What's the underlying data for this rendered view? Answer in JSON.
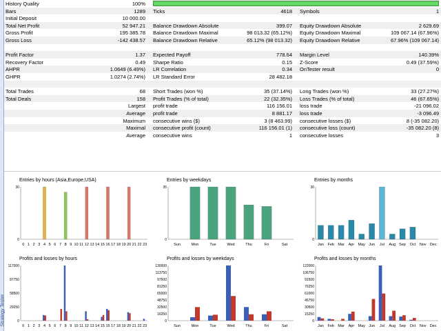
{
  "sidebar": {
    "label": "Strategy Tester"
  },
  "rows": [
    {
      "alt": false,
      "cells": [
        [
          "History Quality",
          "100%"
        ]
      ],
      "bar": 1.0
    },
    {
      "alt": true,
      "cells": [
        [
          "Bars",
          "1289"
        ],
        [
          "Ticks",
          "4618"
        ],
        [
          "Symbols",
          "1"
        ]
      ]
    },
    {
      "alt": false,
      "cells": [
        [
          "Initial Deposit",
          "10 000.00"
        ]
      ]
    },
    {
      "alt": true,
      "cells": [
        [
          "Total Net Profit",
          "52 947.21"
        ],
        [
          "Balance Drawdown Absolute",
          "399.07"
        ],
        [
          "Equity Drawdown Absolute",
          "2 629.69"
        ]
      ]
    },
    {
      "alt": false,
      "cells": [
        [
          "Gross Profit",
          "195 385.78"
        ],
        [
          "Balance Drawdown Maximal",
          "98 013.32 (65.12%)"
        ],
        [
          "Equity Drawdown Maximal",
          "109 067.14 (67.96%)"
        ]
      ]
    },
    {
      "alt": true,
      "cells": [
        [
          "Gross Loss",
          "-142 438.57"
        ],
        [
          "Balance Drawdown Relative",
          "65.12% (98 013.32)"
        ],
        [
          "Equity Drawdown Relative",
          "67.96% (109 067.14)"
        ]
      ]
    },
    {
      "alt": false,
      "cells": []
    },
    {
      "alt": true,
      "cells": [
        [
          "Profit Factor",
          "1.37"
        ],
        [
          "Expected Payoff",
          "778.64"
        ],
        [
          "Margin Level",
          "140.39%"
        ]
      ]
    },
    {
      "alt": false,
      "cells": [
        [
          "Recovery Factor",
          "0.49"
        ],
        [
          "Sharpe Ratio",
          "0.15"
        ],
        [
          "Z-Score",
          "0.49 (37.59%)"
        ]
      ]
    },
    {
      "alt": true,
      "cells": [
        [
          "AHPR",
          "1.0649 (6.49%)"
        ],
        [
          "LR Correlation",
          "0.34"
        ],
        [
          "OnTester result",
          "0"
        ]
      ]
    },
    {
      "alt": false,
      "cells": [
        [
          "GHPR",
          "1.0274 (2.74%)"
        ],
        [
          "LR Standard Error",
          "28 482.18"
        ]
      ]
    },
    {
      "alt": true,
      "cells": []
    },
    {
      "alt": false,
      "cells": [
        [
          "Total Trades",
          "68"
        ],
        [
          "Short Trades (won %)",
          "35 (37.14%)"
        ],
        [
          "Long Trades (won %)",
          "33 (27.27%)"
        ]
      ]
    },
    {
      "alt": true,
      "cells": [
        [
          "Total Deals",
          "158"
        ],
        [
          "Profit Trades (% of total)",
          "22 (32.35%)"
        ],
        [
          "Loss Trades (% of total)",
          "46 (67.65%)"
        ]
      ]
    },
    {
      "alt": false,
      "cells": [
        [
          "",
          "Largest"
        ],
        [
          "profit trade",
          "116 156.01"
        ],
        [
          "loss trade",
          "-21 096.02"
        ]
      ]
    },
    {
      "alt": true,
      "cells": [
        [
          "",
          "Average"
        ],
        [
          "profit trade",
          "8 881.17"
        ],
        [
          "loss trade",
          "-3 096.49"
        ]
      ]
    },
    {
      "alt": false,
      "cells": [
        [
          "",
          "Maximum"
        ],
        [
          "consecutive wins ($)",
          "3 (8 463.99)"
        ],
        [
          "consecutive losses ($)",
          "8 (-35 082.20)"
        ]
      ]
    },
    {
      "alt": true,
      "cells": [
        [
          "",
          "Maximal"
        ],
        [
          "consecutive profit (count)",
          "116 156.01 (1)"
        ],
        [
          "consecutive loss (count)",
          "-35 082.20 (8)"
        ]
      ]
    },
    {
      "alt": false,
      "cells": [
        [
          "",
          "Average"
        ],
        [
          "consecutive wins",
          "1"
        ],
        [
          "consecutive losses",
          "3"
        ]
      ]
    }
  ],
  "charts": [
    {
      "title": "Entries by hours (Asia,Europe,USA)",
      "kind": "bar",
      "categories": [
        "0",
        "1",
        "2",
        "3",
        "4",
        "5",
        "6",
        "7",
        "8",
        "9",
        "10",
        "11",
        "12",
        "13",
        "14",
        "15",
        "16",
        "17",
        "18",
        "19",
        "20",
        "21",
        "22",
        "23"
      ],
      "ymax": 30,
      "ticks": [
        "30",
        "0"
      ],
      "values": [
        0,
        0,
        0,
        0,
        30,
        0,
        0,
        0,
        27,
        0,
        0,
        0,
        30,
        0,
        0,
        0,
        30,
        0,
        0,
        0,
        30,
        0,
        0,
        0
      ],
      "colors": [
        "#8fbf5a",
        "#8fbf5a",
        "#8fbf5a",
        "#8fbf5a",
        "#e8b04a",
        "#e8b04a",
        "#e8b04a",
        "#e8b04a",
        "#8fc85a",
        "#8fc85a",
        "#8fc85a",
        "#8fc85a",
        "#d9786a",
        "#d9786a",
        "#d9786a",
        "#d9786a",
        "#d9786a",
        "#d9786a",
        "#d9786a",
        "#d9786a",
        "#d9786a",
        "#d9786a",
        "#d9786a",
        "#d9786a"
      ]
    },
    {
      "title": "Entries by weekdays",
      "kind": "bar",
      "categories": [
        "Sun",
        "Mon",
        "Tue",
        "Wed",
        "Thu",
        "Fri",
        "Sat"
      ],
      "ymax": 35,
      "ticks": [
        "35",
        "0"
      ],
      "values": [
        0,
        35,
        35,
        35,
        23,
        22,
        0
      ],
      "colors": [
        "#4aa37c",
        "#4aa37c",
        "#4aa37c",
        "#4aa37c",
        "#4aa37c",
        "#4aa37c",
        "#4aa37c"
      ]
    },
    {
      "title": "Entries by months",
      "kind": "bar",
      "categories": [
        "Jan",
        "Feb",
        "Mar",
        "Apr",
        "May",
        "Jun",
        "Jul",
        "Aug",
        "Sep",
        "Oct",
        "Nov",
        "Dec"
      ],
      "ymax": 30,
      "ticks": [
        "30",
        "0"
      ],
      "values": [
        8,
        8,
        8,
        11,
        3,
        9,
        30,
        3,
        6,
        7,
        0,
        0
      ],
      "colors": [
        "#2a88a8",
        "#2a88a8",
        "#2a88a8",
        "#2a88a8",
        "#2a88a8",
        "#2a88a8",
        "#5bb8d4",
        "#2a88a8",
        "#2a88a8",
        "#2a88a8",
        "#2a88a8",
        "#2a88a8"
      ]
    },
    {
      "title": "Profits and losses by hours",
      "kind": "pl",
      "categories": [
        "0",
        "1",
        "2",
        "3",
        "4",
        "5",
        "6",
        "7",
        "8",
        "9",
        "10",
        "11",
        "12",
        "13",
        "14",
        "15",
        "16",
        "17",
        "18",
        "19",
        "20",
        "21",
        "22",
        "23"
      ],
      "ymax": 117000,
      "ticks": [
        "117000",
        "87750",
        "58500",
        "29250",
        "0"
      ],
      "profits": [
        0,
        0,
        0,
        0,
        12000,
        0,
        0,
        0,
        117000,
        0,
        0,
        0,
        20000,
        0,
        0,
        8000,
        25000,
        0,
        0,
        0,
        18000,
        0,
        0,
        4000
      ],
      "losses": [
        0,
        0,
        0,
        0,
        11000,
        0,
        0,
        25000,
        20000,
        0,
        0,
        0,
        3000,
        0,
        0,
        12000,
        22000,
        0,
        0,
        0,
        16000,
        0,
        0,
        0
      ]
    },
    {
      "title": "Profits and losses by weekdays",
      "kind": "pl",
      "categories": [
        "Sun",
        "Mon",
        "Tue",
        "Wed",
        "Thu",
        "Fri",
        "Sat"
      ],
      "ymax": 130000,
      "ticks": [
        "130000",
        "113750",
        "97500",
        "81250",
        "65000",
        "48750",
        "32500",
        "16250",
        "0"
      ],
      "profits": [
        0,
        8000,
        12000,
        130000,
        32000,
        15000,
        0
      ],
      "losses": [
        0,
        32000,
        14000,
        58000,
        15000,
        22000,
        0
      ]
    },
    {
      "title": "Profits and losses by months",
      "kind": "pl",
      "categories": [
        "Jan",
        "Feb",
        "Mar",
        "Apr",
        "May",
        "Jun",
        "Jul",
        "Aug",
        "Sep",
        "Oct",
        "Nov",
        "Dec"
      ],
      "ymax": 122000,
      "ticks": [
        "122000",
        "106750",
        "91500",
        "76250",
        "61000",
        "45750",
        "30500",
        "15250",
        "0"
      ],
      "profits": [
        8000,
        4000,
        0,
        15000,
        0,
        10000,
        122000,
        10000,
        9000,
        2000,
        0,
        0
      ],
      "losses": [
        5000,
        3000,
        4000,
        20000,
        0,
        48000,
        60000,
        22000,
        12000,
        6000,
        0,
        0
      ]
    }
  ],
  "colors": {
    "profit": "#3a5fb8",
    "loss": "#c0392b",
    "axis": "#777777"
  }
}
